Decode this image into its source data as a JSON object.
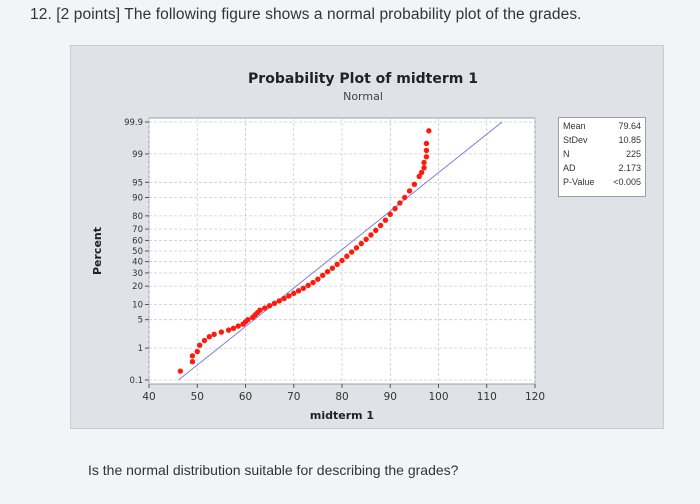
{
  "question": {
    "text": "12. [2 points] The following figure shows a normal probability plot of the grades."
  },
  "footer": {
    "text": "Is the normal distribution suitable for describing the grades?"
  },
  "stats": [
    {
      "label": "Mean",
      "value": "79.64"
    },
    {
      "label": "StDev",
      "value": "10.85"
    },
    {
      "label": "N",
      "value": "225"
    },
    {
      "label": "AD",
      "value": "2.173"
    },
    {
      "label": "P-Value",
      "value": "<0.005"
    }
  ],
  "colors": {
    "points": "#ff1a0d",
    "fit_line": "#7b7fd9",
    "plot_bg": "#ffffff",
    "figure_bg": "#dfe2e7",
    "grid": "#c9ccd2"
  },
  "chart_data": {
    "type": "scatter",
    "title": "Probability Plot of midterm 1",
    "subtitle": "Normal",
    "xlabel": "midterm 1",
    "ylabel": "Percent",
    "xlim": [
      40,
      120
    ],
    "x_ticks": [
      40,
      50,
      60,
      70,
      80,
      90,
      100,
      110,
      120
    ],
    "y_ticks": [
      0.1,
      1,
      5,
      10,
      20,
      30,
      40,
      50,
      60,
      70,
      80,
      90,
      95,
      99,
      99.9
    ],
    "y_tick_labels": [
      "0.1",
      "1",
      "5",
      "10",
      "20",
      "30",
      "40",
      "50",
      "60",
      "70",
      "80",
      "90",
      "95",
      "99",
      "99.9"
    ],
    "y_scale": "normal-probability",
    "grid": true,
    "fit_line": {
      "mean": 79.64,
      "stdev": 10.85
    },
    "series": [
      {
        "x": [
          46.5,
          49.0,
          49.0,
          50.0,
          50.5,
          51.5,
          52.5,
          53.5,
          55.0,
          56.5,
          57.5,
          58.5,
          59.5,
          60.0,
          60.5,
          61.5,
          62.0,
          62.5,
          63.0,
          64.0,
          65.0,
          66.0,
          67.0,
          68.0,
          69.0,
          70.0,
          71.0,
          72.0,
          73.0,
          74.0,
          75.0,
          76.0,
          77.0,
          78.0,
          79.0,
          80.0,
          81.0,
          82.0,
          83.0,
          84.0,
          85.0,
          86.0,
          87.0,
          88.0,
          89.0,
          90.0,
          91.0,
          92.0,
          93.0,
          94.0,
          95.0,
          96.0,
          96.5,
          97.0,
          97.0,
          97.5,
          97.5,
          97.5,
          98.0
        ],
        "y": [
          0.2,
          0.4,
          0.6,
          0.8,
          1.2,
          1.6,
          2.0,
          2.3,
          2.6,
          2.9,
          3.2,
          3.6,
          4.0,
          4.5,
          5.0,
          5.6,
          6.3,
          7.0,
          7.8,
          8.6,
          9.5,
          10.5,
          11.6,
          12.8,
          14.1,
          15.5,
          17.0,
          18.6,
          20.5,
          22.5,
          25.0,
          28.0,
          31.0,
          34.0,
          37.5,
          41.0,
          45.0,
          49.0,
          53.0,
          57.0,
          61.0,
          65.0,
          69.0,
          73.0,
          77.0,
          81.0,
          84.5,
          87.5,
          90.0,
          92.5,
          94.5,
          96.3,
          97.0,
          97.7,
          98.3,
          98.8,
          99.2,
          99.5,
          99.8
        ]
      }
    ]
  }
}
